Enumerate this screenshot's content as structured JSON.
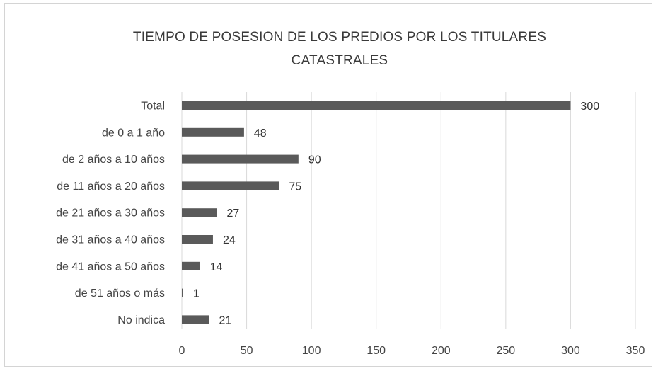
{
  "chart_data": {
    "type": "bar",
    "orientation": "horizontal",
    "title": "TIEMPO DE POSESION DE LOS PREDIOS POR LOS TITULARES\nCATASTRALES",
    "categories": [
      "Total",
      "de 0 a 1 año",
      "de 2 años a 10 años",
      "de 11 años a 20 años",
      "de 21 años a 30 años",
      "de 31 años a 40 años",
      "de 41 años a 50 años",
      "de 51 años o más",
      "No indica"
    ],
    "values": [
      300,
      48,
      90,
      75,
      27,
      24,
      14,
      1,
      21
    ],
    "data_labels": [
      "300",
      "48",
      "90",
      "75",
      "27",
      "24",
      "14",
      "1",
      "21"
    ],
    "xlim": [
      0,
      350
    ],
    "x_ticks": [
      0,
      50,
      100,
      150,
      200,
      250,
      300,
      350
    ],
    "x_tick_labels": [
      "0",
      "50",
      "100",
      "150",
      "200",
      "250",
      "300",
      "350"
    ],
    "xlabel": "",
    "ylabel": "",
    "grid": "vertical",
    "legend": "none",
    "bar_color": "#5a5a5a"
  }
}
